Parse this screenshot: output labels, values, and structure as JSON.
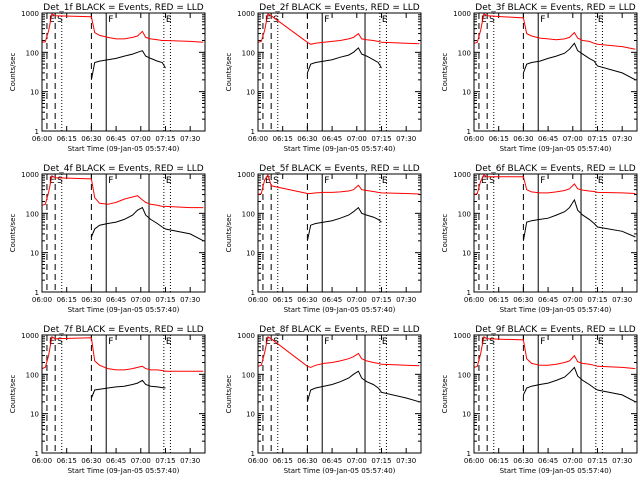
{
  "chart_data": {
    "type": "line",
    "shared": {
      "ylabel": "Counts/sec",
      "xlabel": "Start Time (09-Jan-05 05:57:40)",
      "y_log": true,
      "ylim": [
        1,
        1000
      ],
      "y_ticks": [
        "1",
        "10",
        "100",
        "1000"
      ],
      "xlim": [
        "06:00",
        "07:39"
      ],
      "x_ticks": [
        "06:00",
        "06:15",
        "06:30",
        "06:45",
        "07:00",
        "07:15",
        "07:30"
      ],
      "series": [
        {
          "name": "Events",
          "color": "#000000"
        },
        {
          "name": "LLD",
          "color": "#ff0000"
        }
      ],
      "markers": [
        {
          "time": "06:03",
          "label": "E",
          "style": "dashed"
        },
        {
          "time": "06:08",
          "label": "S",
          "style": "dashed"
        },
        {
          "time": "06:12",
          "label": "",
          "style": "dotted"
        },
        {
          "time": "06:30",
          "label": "",
          "style": "dashed"
        },
        {
          "time": "06:39",
          "label": "F",
          "style": "solid"
        },
        {
          "time": "07:05",
          "label": "",
          "style": "solid"
        },
        {
          "time": "07:14",
          "label": "E",
          "style": "dotted"
        },
        {
          "time": "07:18",
          "label": "",
          "style": "dotted"
        }
      ],
      "time_axis": [
        "06:00",
        "06:02",
        "06:04",
        "06:06",
        "06:08",
        "06:30",
        "06:32",
        "06:35",
        "06:40",
        "06:45",
        "06:50",
        "06:55",
        "06:58",
        "07:01",
        "07:03",
        "07:06",
        "07:10",
        "07:13",
        "07:15",
        "07:30",
        "07:38"
      ]
    },
    "panels": [
      {
        "title": "Det_1f BLACK = Events, RED = LLD",
        "lld": [
          180,
          185,
          350,
          950,
          850,
          800,
          320,
          270,
          240,
          220,
          220,
          240,
          260,
          340,
          240,
          220,
          210,
          200,
          200,
          190,
          180
        ],
        "events": [
          null,
          null,
          null,
          null,
          null,
          20,
          55,
          60,
          65,
          70,
          80,
          90,
          100,
          110,
          80,
          70,
          60,
          55,
          40,
          null,
          null
        ]
      },
      {
        "title": "Det_2f BLACK = Events, RED = LLD",
        "lld": [
          180,
          190,
          360,
          950,
          850,
          180,
          160,
          170,
          180,
          190,
          200,
          220,
          240,
          300,
          220,
          210,
          200,
          190,
          180,
          170,
          165
        ],
        "events": [
          null,
          null,
          null,
          null,
          null,
          30,
          50,
          55,
          60,
          65,
          75,
          85,
          100,
          130,
          90,
          80,
          65,
          55,
          40,
          null,
          null
        ]
      },
      {
        "title": "Det_3f BLACK = Events, RED = LLD",
        "lld": [
          170,
          180,
          360,
          950,
          850,
          750,
          300,
          260,
          230,
          220,
          210,
          220,
          240,
          320,
          230,
          200,
          190,
          170,
          160,
          140,
          120
        ],
        "events": [
          null,
          null,
          null,
          null,
          null,
          30,
          50,
          55,
          60,
          70,
          80,
          95,
          120,
          170,
          110,
          90,
          70,
          60,
          45,
          30,
          20
        ]
      },
      {
        "title": "Det_4f BLACK = Events, RED = LLD",
        "lld": [
          160,
          170,
          340,
          900,
          800,
          750,
          250,
          180,
          170,
          190,
          230,
          260,
          280,
          220,
          190,
          170,
          160,
          150,
          150,
          140,
          140
        ],
        "events": [
          null,
          null,
          null,
          null,
          null,
          25,
          40,
          50,
          55,
          60,
          70,
          90,
          120,
          140,
          90,
          70,
          55,
          45,
          40,
          30,
          20
        ]
      },
      {
        "title": "Det_5f BLACK = Events, RED = LLD",
        "lld": [
          300,
          320,
          700,
          950,
          500,
          320,
          320,
          330,
          340,
          340,
          350,
          370,
          400,
          520,
          400,
          380,
          360,
          340,
          330,
          320,
          310
        ],
        "events": [
          null,
          null,
          null,
          null,
          null,
          20,
          50,
          55,
          60,
          65,
          75,
          90,
          110,
          140,
          100,
          90,
          80,
          70,
          60,
          null,
          null
        ]
      },
      {
        "title": "Det_6f BLACK = Events, RED = LLD",
        "lld": [
          300,
          320,
          650,
          950,
          850,
          850,
          400,
          350,
          330,
          330,
          350,
          380,
          420,
          560,
          420,
          390,
          370,
          360,
          340,
          330,
          320
        ],
        "events": [
          null,
          null,
          null,
          null,
          null,
          20,
          60,
          65,
          70,
          75,
          90,
          110,
          140,
          220,
          120,
          90,
          70,
          55,
          45,
          35,
          25
        ]
      },
      {
        "title": "Det_7f BLACK = Events, RED = LLD",
        "lld": [
          140,
          150,
          300,
          900,
          800,
          850,
          220,
          170,
          140,
          130,
          130,
          140,
          150,
          160,
          140,
          130,
          130,
          125,
          120,
          120,
          120
        ],
        "events": [
          null,
          null,
          null,
          null,
          null,
          25,
          40,
          42,
          45,
          48,
          50,
          55,
          60,
          70,
          55,
          50,
          48,
          46,
          45,
          null,
          null
        ]
      },
      {
        "title": "Det_8f BLACK = Events, RED = LLD",
        "lld": [
          160,
          170,
          350,
          900,
          800,
          160,
          150,
          170,
          190,
          200,
          220,
          250,
          280,
          340,
          250,
          220,
          200,
          190,
          180,
          170,
          165
        ],
        "events": [
          null,
          null,
          null,
          null,
          null,
          20,
          40,
          45,
          50,
          55,
          65,
          80,
          100,
          120,
          80,
          65,
          55,
          45,
          35,
          25,
          20
        ]
      },
      {
        "title": "Det_9f BLACK = Events, RED = LLD",
        "lld": [
          150,
          160,
          330,
          900,
          800,
          750,
          250,
          190,
          170,
          170,
          180,
          200,
          220,
          300,
          210,
          190,
          180,
          170,
          160,
          150,
          140
        ],
        "events": [
          null,
          null,
          null,
          null,
          null,
          30,
          45,
          50,
          55,
          60,
          70,
          85,
          110,
          150,
          90,
          70,
          55,
          45,
          40,
          30,
          20
        ]
      }
    ]
  }
}
